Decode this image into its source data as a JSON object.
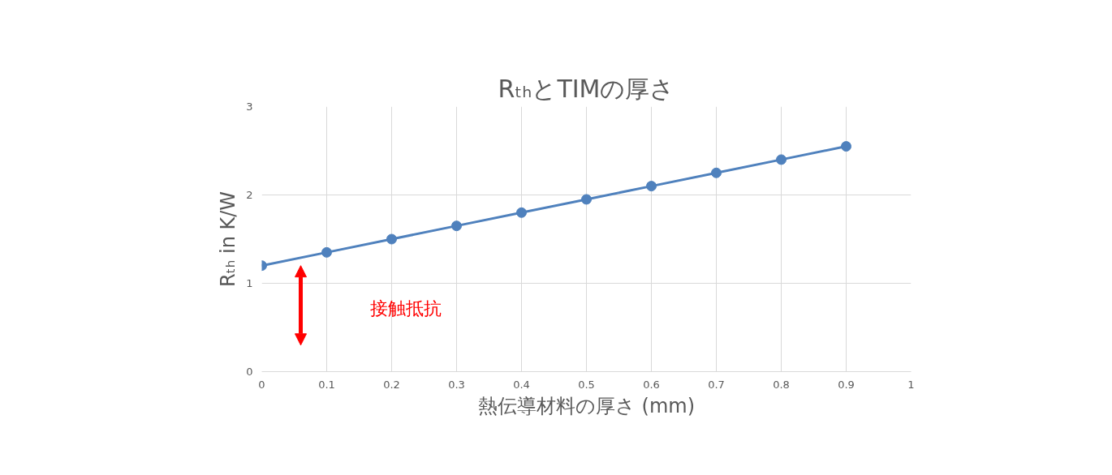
{
  "chart_data": {
    "type": "line",
    "title": "RₜₕとTIMの厚さ",
    "xlabel": "熱伝導材料の厚さ (mm)",
    "ylabel": "Rₜₕ in K/W",
    "x": [
      0,
      0.1,
      0.2,
      0.3,
      0.4,
      0.5,
      0.6,
      0.7,
      0.8,
      0.9
    ],
    "series": [
      {
        "color": "#4f81bd",
        "values": [
          1.2,
          1.35,
          1.5,
          1.65,
          1.8,
          1.95,
          2.1,
          2.25,
          2.4,
          2.55
        ]
      }
    ],
    "xlim": [
      0,
      1
    ],
    "ylim": [
      0,
      3
    ],
    "xticks": [
      0,
      0.1,
      0.2,
      0.3,
      0.4,
      0.5,
      0.6,
      0.7,
      0.8,
      0.9,
      1
    ],
    "yticks": [
      0,
      1,
      2,
      3
    ],
    "grid": true,
    "marker": "circle",
    "line_style": "solid",
    "annotations": [
      "接触抵抗"
    ]
  }
}
